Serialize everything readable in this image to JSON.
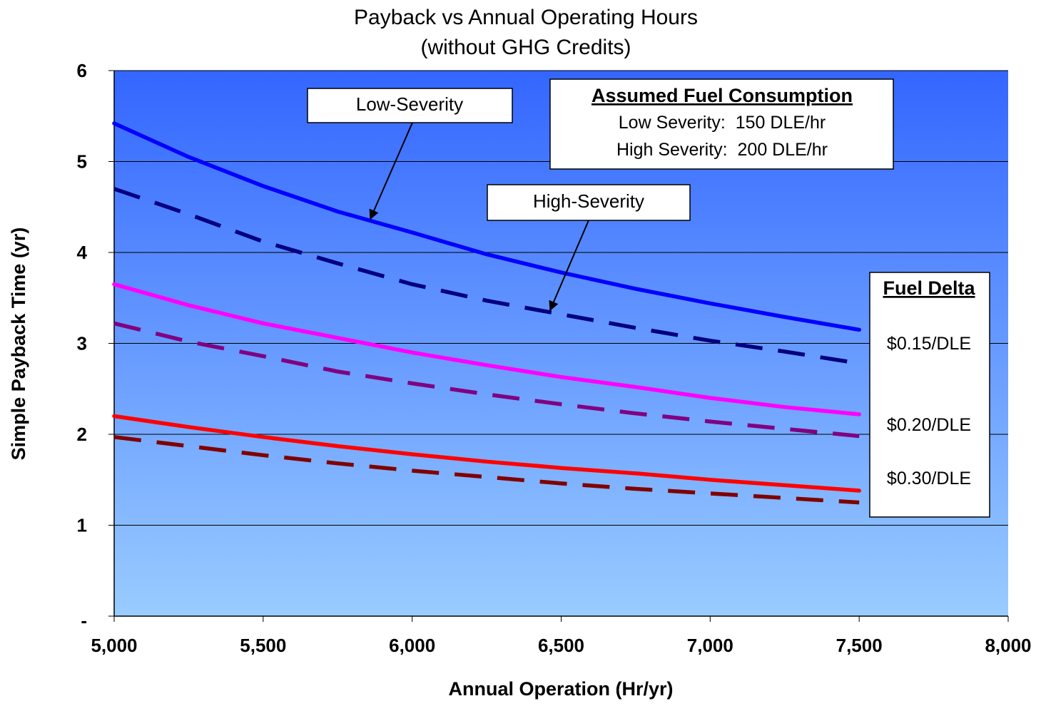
{
  "chart_data": {
    "type": "line",
    "title": "Payback vs Annual Operating Hours",
    "subtitle": "(without GHG Credits)",
    "xlabel": "Annual Operation (Hr/yr)",
    "ylabel": "Simple Payback Time (yr)",
    "xlim": [
      5000,
      8000
    ],
    "ylim": [
      0,
      6
    ],
    "x_ticks": [
      "5,000",
      "5,500",
      "6,000",
      "6,500",
      "7,000",
      "7,500",
      "8,000"
    ],
    "y_ticks": [
      "-",
      "1",
      "2",
      "3",
      "4",
      "5",
      "6"
    ],
    "grid": "horizontal",
    "x": [
      5000,
      5250,
      5500,
      5750,
      6000,
      6250,
      6500,
      6750,
      7000,
      7250,
      7500
    ],
    "series": [
      {
        "fuel_delta": "$0.15/DLE",
        "severity": "Low-Severity",
        "style": "solid",
        "color": "#0000ff",
        "values": [
          5.42,
          5.05,
          4.73,
          4.45,
          4.22,
          3.98,
          3.78,
          3.6,
          3.44,
          3.29,
          3.15
        ]
      },
      {
        "fuel_delta": "$0.15/DLE",
        "severity": "High-Severity",
        "style": "dashed",
        "color": "#000080",
        "values": [
          4.7,
          4.42,
          4.12,
          3.88,
          3.65,
          3.47,
          3.32,
          3.17,
          3.03,
          2.91,
          2.78
        ]
      },
      {
        "fuel_delta": "$0.20/DLE",
        "severity": "Low-Severity",
        "style": "solid",
        "color": "#ff00ff",
        "values": [
          3.65,
          3.42,
          3.22,
          3.06,
          2.9,
          2.76,
          2.63,
          2.52,
          2.4,
          2.3,
          2.22
        ]
      },
      {
        "fuel_delta": "$0.20/DLE",
        "severity": "High-Severity",
        "style": "dashed",
        "color": "#800080",
        "values": [
          3.22,
          3.02,
          2.86,
          2.69,
          2.56,
          2.44,
          2.33,
          2.23,
          2.14,
          2.06,
          1.98
        ]
      },
      {
        "fuel_delta": "$0.30/DLE",
        "severity": "Low-Severity",
        "style": "solid",
        "color": "#ff0000",
        "values": [
          2.2,
          2.08,
          1.97,
          1.87,
          1.78,
          1.7,
          1.63,
          1.57,
          1.5,
          1.44,
          1.38
        ]
      },
      {
        "fuel_delta": "$0.30/DLE",
        "severity": "High-Severity",
        "style": "dashed",
        "color": "#800000",
        "values": [
          1.97,
          1.87,
          1.77,
          1.68,
          1.6,
          1.53,
          1.46,
          1.4,
          1.35,
          1.3,
          1.25
        ]
      }
    ],
    "annotations": {
      "low_severity_label": "Low-Severity",
      "high_severity_label": "High-Severity",
      "fuel_box": {
        "heading": "Assumed Fuel Consumption",
        "line1": "Low Severity:  150 DLE/hr",
        "line2": "High Severity:  200 DLE/hr"
      },
      "fuel_delta_box": {
        "heading": "Fuel Delta",
        "labels": [
          "$0.15/DLE",
          "$0.20/DLE",
          "$0.30/DLE"
        ]
      }
    },
    "colors": {
      "plot_bg_top": "#3366ff",
      "plot_bg_bottom": "#99ccff"
    }
  }
}
